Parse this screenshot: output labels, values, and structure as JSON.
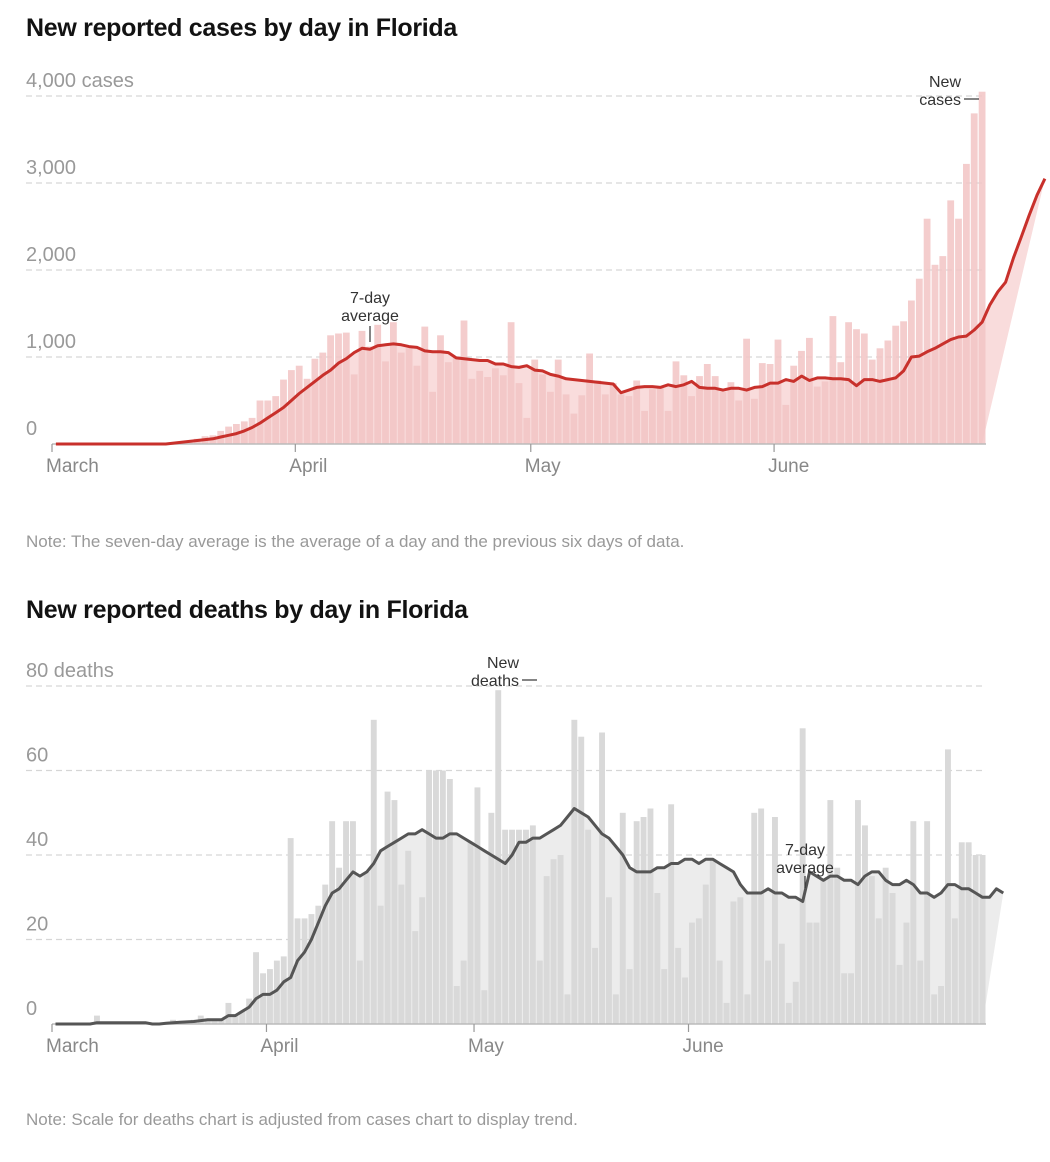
{
  "chart_data": [
    {
      "type": "bar",
      "title": "New reported cases by day in Florida",
      "note": "Note: The seven-day average is the average of a day and the previous six days of data.",
      "y_unit_label": "4,000 cases",
      "y_ticks": [
        {
          "value": 0,
          "label": "0"
        },
        {
          "value": 1000,
          "label": "1,000"
        },
        {
          "value": 2000,
          "label": "2,000"
        },
        {
          "value": 3000,
          "label": "3,000"
        },
        {
          "value": 4000,
          "label": "4,000 cases"
        }
      ],
      "ylim": [
        0,
        4000
      ],
      "x_ticks": [
        "March",
        "April",
        "May",
        "June"
      ],
      "grid": true,
      "start_date": "March 1",
      "series": [
        {
          "name": "New cases",
          "kind": "bars",
          "color": "#f2c4c4",
          "values": [
            0,
            0,
            0,
            0,
            0,
            0,
            0,
            0,
            0,
            0,
            0,
            0,
            0,
            0,
            0,
            10,
            20,
            40,
            60,
            90,
            100,
            150,
            200,
            230,
            260,
            300,
            500,
            500,
            550,
            740,
            850,
            900,
            750,
            980,
            1050,
            1250,
            1270,
            1280,
            800,
            1300,
            1120,
            1370,
            950,
            1400,
            1050,
            1100,
            900,
            1350,
            600,
            1250,
            940,
            1000,
            1420,
            750,
            840,
            770,
            870,
            790,
            1400,
            700,
            300,
            970,
            800,
            600,
            970,
            570,
            350,
            560,
            1040,
            730,
            570,
            700,
            570,
            550,
            730,
            380,
            630,
            650,
            380,
            950,
            790,
            550,
            780,
            920,
            780,
            600,
            710,
            500,
            1210,
            520,
            930,
            920,
            1200,
            450,
            900,
            1070,
            1220,
            660,
            720,
            1470,
            940,
            1400,
            1320,
            1270,
            970,
            1100,
            1190,
            1360,
            1410,
            1650,
            1900,
            2590,
            2060,
            2160,
            2800,
            2590,
            3220,
            3800,
            4050
          ]
        },
        {
          "name": "7-day average",
          "kind": "line",
          "color": "#c8302b",
          "values": [
            0,
            0,
            0,
            0,
            0,
            0,
            0,
            0,
            0,
            0,
            0,
            0,
            0,
            0,
            0,
            10,
            20,
            30,
            40,
            50,
            60,
            80,
            100,
            120,
            150,
            190,
            240,
            300,
            360,
            420,
            500,
            580,
            650,
            720,
            790,
            850,
            930,
            980,
            1050,
            1100,
            1090,
            1130,
            1140,
            1150,
            1140,
            1120,
            1110,
            1070,
            1060,
            1060,
            1050,
            990,
            980,
            970,
            960,
            960,
            920,
            920,
            890,
            880,
            900,
            850,
            840,
            800,
            780,
            750,
            740,
            730,
            720,
            710,
            700,
            690,
            590,
            620,
            650,
            660,
            660,
            650,
            680,
            660,
            680,
            720,
            650,
            640,
            640,
            620,
            640,
            640,
            620,
            650,
            660,
            700,
            700,
            740,
            720,
            780,
            730,
            760,
            760,
            750,
            750,
            740,
            670,
            740,
            740,
            720,
            740,
            760,
            840,
            1000,
            1010,
            1060,
            1100,
            1150,
            1200,
            1230,
            1240,
            1310,
            1400,
            1600,
            1750,
            1860,
            2140,
            2380,
            2630,
            2860,
            3050
          ]
        }
      ],
      "annotations": {
        "average_label": [
          "7-day",
          "average"
        ],
        "bars_label": [
          "New",
          "cases"
        ]
      }
    },
    {
      "type": "bar",
      "title": "New reported deaths by day in Florida",
      "note": "Note: Scale for deaths chart is adjusted from cases chart to display trend.",
      "y_unit_label": "80 deaths",
      "y_ticks": [
        {
          "value": 0,
          "label": "0"
        },
        {
          "value": 20,
          "label": "20"
        },
        {
          "value": 40,
          "label": "40"
        },
        {
          "value": 60,
          "label": "60"
        },
        {
          "value": 80,
          "label": "80 deaths"
        }
      ],
      "ylim": [
        0,
        80
      ],
      "x_ticks": [
        "March",
        "April",
        "May",
        "June"
      ],
      "grid": true,
      "start_date": "March 1",
      "series": [
        {
          "name": "New deaths",
          "kind": "bars",
          "color": "#d9d9d9",
          "values": [
            0,
            0,
            0,
            0,
            0,
            0,
            2,
            0,
            0,
            0,
            0,
            0,
            0,
            0,
            0,
            0,
            0,
            1,
            0,
            0,
            1,
            2,
            1,
            1,
            1,
            5,
            2,
            3,
            6,
            17,
            12,
            13,
            15,
            16,
            44,
            25,
            25,
            26,
            28,
            33,
            48,
            37,
            48,
            48,
            15,
            36,
            72,
            28,
            55,
            53,
            33,
            41,
            22,
            30,
            60,
            60,
            60,
            58,
            9,
            15,
            43,
            56,
            8,
            50,
            79,
            46,
            46,
            46,
            46,
            47,
            15,
            35,
            39,
            40,
            7,
            72,
            68,
            46,
            18,
            69,
            30,
            7,
            50,
            13,
            48,
            49,
            51,
            31,
            13,
            52,
            18,
            11,
            24,
            25,
            33,
            39,
            15,
            5,
            29,
            30,
            7,
            50,
            51,
            15,
            49,
            19,
            5,
            10,
            70,
            24,
            24,
            34,
            53,
            37,
            12,
            12,
            53,
            47,
            35,
            25,
            37,
            31,
            14,
            24,
            48,
            15,
            48,
            7,
            9,
            65,
            25,
            43,
            43,
            40,
            40
          ]
        },
        {
          "name": "7-day average",
          "kind": "line",
          "color": "#555555",
          "values": [
            0,
            0,
            0,
            0,
            0,
            0,
            0.3,
            0.3,
            0.3,
            0.3,
            0.3,
            0.3,
            0.3,
            0.3,
            0,
            0,
            0.2,
            0.3,
            0.4,
            0.5,
            0.6,
            0.8,
            1,
            1,
            1,
            2,
            2,
            3,
            4,
            6,
            7,
            7,
            8,
            10,
            11,
            15,
            17,
            20,
            24,
            28,
            31,
            32,
            34,
            36,
            35,
            36,
            38,
            41,
            42,
            43,
            44,
            45,
            45,
            46,
            45,
            44,
            44,
            45,
            45,
            44,
            43,
            42,
            41,
            40,
            39,
            38,
            40,
            43,
            43,
            44,
            44,
            45,
            46,
            47,
            49,
            51,
            50,
            49,
            47,
            45,
            44,
            42,
            40,
            37,
            36,
            36,
            36,
            37,
            37,
            38,
            38,
            39,
            39,
            38,
            39,
            39,
            38,
            37,
            36,
            33,
            31,
            31,
            31,
            32,
            31,
            31,
            30,
            30,
            29,
            36,
            35,
            34,
            35,
            35,
            34,
            34,
            33,
            35,
            36,
            36,
            34,
            33,
            33,
            34,
            33,
            31,
            31,
            30,
            31,
            33,
            33,
            32,
            32,
            31,
            30,
            30,
            32,
            31
          ]
        }
      ],
      "annotations": {
        "average_label": [
          "7-day",
          "average"
        ],
        "bars_label": [
          "New",
          "deaths"
        ]
      }
    }
  ]
}
